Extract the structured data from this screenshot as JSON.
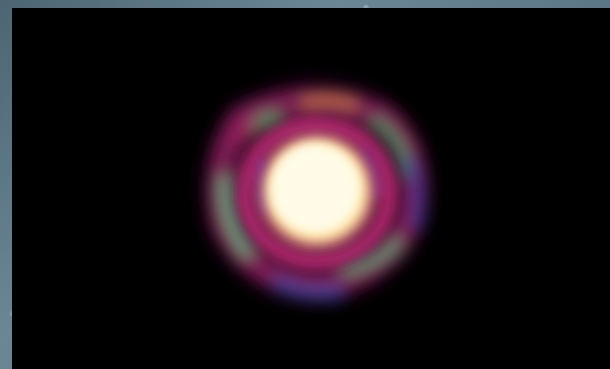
{
  "image": {
    "subject": "star-with-rings-icon",
    "colors": {
      "background": "#000000",
      "frame": "#5a7482",
      "core": "#fff6c8",
      "ring_magenta": "#b0246e",
      "ring_green": "#4fae6e",
      "ring_blue": "#3848a8"
    }
  }
}
